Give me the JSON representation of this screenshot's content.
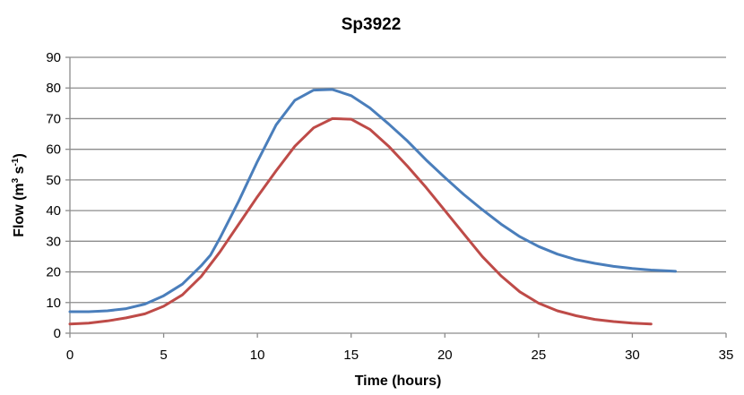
{
  "chart_data": {
    "type": "line",
    "title": "Sp3922",
    "xlabel": "Time (hours)",
    "ylabel": {
      "prefix": "Flow (m",
      "sup1": "3",
      "middle": " s",
      "sup2": "-1",
      "suffix": ")"
    },
    "xlim": [
      0,
      35
    ],
    "ylim": [
      0,
      90
    ],
    "xticks": [
      "0",
      "5",
      "10",
      "15",
      "20",
      "25",
      "30",
      "35"
    ],
    "yticks": [
      "0",
      "10",
      "20",
      "30",
      "40",
      "50",
      "60",
      "70",
      "80",
      "90"
    ],
    "grid": true,
    "legend": "none",
    "series": [
      {
        "color": "#4a7ebb",
        "points": [
          [
            0,
            7
          ],
          [
            1,
            7
          ],
          [
            2,
            7.3
          ],
          [
            3,
            8
          ],
          [
            4,
            9.5
          ],
          [
            5,
            12.2
          ],
          [
            6,
            16
          ],
          [
            7,
            22
          ],
          [
            7.5,
            25.5
          ],
          [
            8,
            31
          ],
          [
            9,
            43
          ],
          [
            10,
            56
          ],
          [
            11,
            68
          ],
          [
            12,
            76
          ],
          [
            13,
            79.3
          ],
          [
            14,
            79.5
          ],
          [
            15,
            77.5
          ],
          [
            16,
            73.5
          ],
          [
            17,
            68.3
          ],
          [
            18,
            62.7
          ],
          [
            19,
            56.5
          ],
          [
            20,
            50.8
          ],
          [
            21,
            45.3
          ],
          [
            22,
            40.3
          ],
          [
            23,
            35.6
          ],
          [
            24,
            31.5
          ],
          [
            25,
            28.3
          ],
          [
            26,
            25.8
          ],
          [
            27,
            24
          ],
          [
            28,
            22.8
          ],
          [
            29,
            21.8
          ],
          [
            30,
            21.1
          ],
          [
            31,
            20.6
          ],
          [
            32,
            20.3
          ],
          [
            32.3,
            20.2
          ]
        ]
      },
      {
        "color": "#be4b48",
        "points": [
          [
            0,
            3
          ],
          [
            1,
            3.3
          ],
          [
            2,
            4
          ],
          [
            3,
            5
          ],
          [
            4,
            6.3
          ],
          [
            5,
            8.8
          ],
          [
            6,
            12.5
          ],
          [
            7,
            18.5
          ],
          [
            8,
            26.5
          ],
          [
            9,
            35.5
          ],
          [
            10,
            44.5
          ],
          [
            11,
            53
          ],
          [
            12,
            61
          ],
          [
            13,
            67
          ],
          [
            14,
            70
          ],
          [
            15,
            69.8
          ],
          [
            16,
            66.5
          ],
          [
            17,
            61
          ],
          [
            18,
            54.5
          ],
          [
            19,
            47.5
          ],
          [
            20,
            40
          ],
          [
            21,
            32.5
          ],
          [
            22,
            25
          ],
          [
            23,
            18.7
          ],
          [
            24,
            13.5
          ],
          [
            25,
            9.8
          ],
          [
            26,
            7.3
          ],
          [
            27,
            5.7
          ],
          [
            28,
            4.5
          ],
          [
            29,
            3.8
          ],
          [
            30,
            3.3
          ],
          [
            31,
            3
          ]
        ]
      }
    ]
  }
}
